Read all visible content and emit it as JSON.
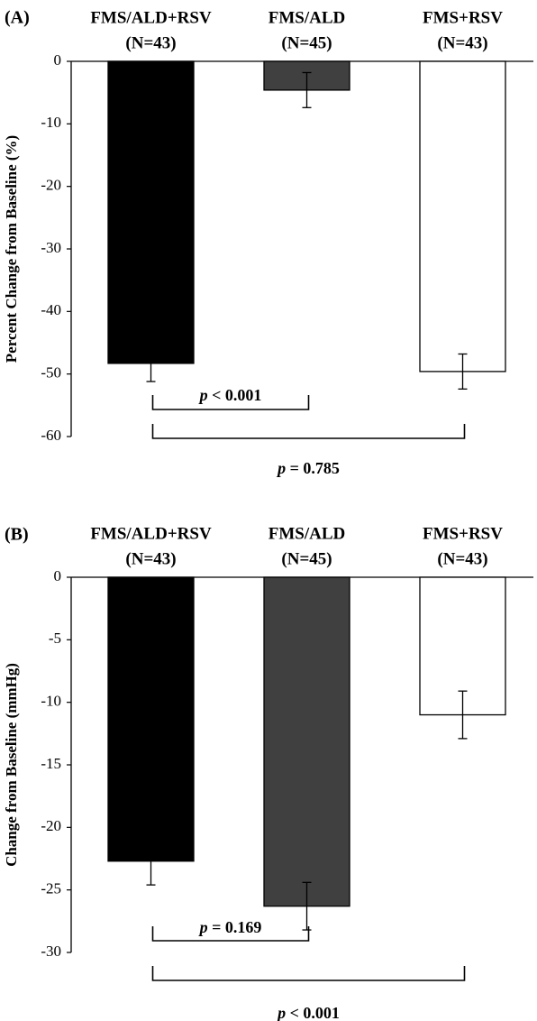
{
  "chart_data": [
    {
      "type": "bar",
      "panel_label": "(A)",
      "categories": [
        {
          "name": "FMS/ALD+RSV",
          "n": "(N=43)"
        },
        {
          "name": "FMS/ALD",
          "n": "(N=45)"
        },
        {
          "name": "FMS+RSV",
          "n": "(N=43)"
        }
      ],
      "values": [
        -48.3,
        -4.6,
        -49.6
      ],
      "error": [
        2.9,
        2.8,
        2.8
      ],
      "bar_colors": [
        "#000000",
        "#404040",
        "#ffffff"
      ],
      "ylabel": "Percent Change from Baseline (%)",
      "ylim": [
        -60,
        0
      ],
      "yticks": [
        0,
        -10,
        -20,
        -30,
        -40,
        -50,
        -60
      ],
      "comparisons": [
        {
          "from": 0,
          "to": 1,
          "label_p": "p",
          "label_rest": " < 0.001"
        },
        {
          "from": 0,
          "to": 2,
          "label_p": "p",
          "label_rest": " = 0.785"
        }
      ]
    },
    {
      "type": "bar",
      "panel_label": "(B)",
      "categories": [
        {
          "name": "FMS/ALD+RSV",
          "n": "(N=43)"
        },
        {
          "name": "FMS/ALD",
          "n": "(N=45)"
        },
        {
          "name": "FMS+RSV",
          "n": "(N=43)"
        }
      ],
      "values": [
        -22.7,
        -26.3,
        -11.0
      ],
      "error": [
        1.9,
        1.9,
        1.9
      ],
      "bar_colors": [
        "#000000",
        "#404040",
        "#ffffff"
      ],
      "ylabel": "Change from Baseline (mmHg)",
      "ylim": [
        -30,
        0
      ],
      "yticks": [
        0,
        -5,
        -10,
        -15,
        -20,
        -25,
        -30
      ],
      "comparisons": [
        {
          "from": 0,
          "to": 1,
          "label_p": "p",
          "label_rest": " = 0.169"
        },
        {
          "from": 0,
          "to": 2,
          "label_p": "p",
          "label_rest": " < 0.001"
        }
      ]
    }
  ]
}
